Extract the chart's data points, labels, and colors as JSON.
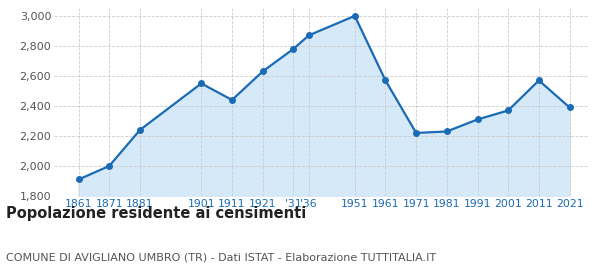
{
  "years": [
    1861,
    1871,
    1881,
    1901,
    1911,
    1921,
    1931,
    1936,
    1951,
    1961,
    1971,
    1981,
    1991,
    2001,
    2011,
    2021
  ],
  "population": [
    1910,
    2000,
    2240,
    2550,
    2440,
    2630,
    2780,
    2870,
    3000,
    2570,
    2220,
    2230,
    2310,
    2370,
    2570,
    2390
  ],
  "line_color": "#1a6bb5",
  "fill_color": "#d6e9f8",
  "marker_color": "#1a6bb5",
  "grid_color": "#cccccc",
  "bg_color": "#ffffff",
  "ylim": [
    1800,
    3050
  ],
  "yticks": [
    1800,
    2000,
    2200,
    2400,
    2600,
    2800,
    3000
  ],
  "xtick_positions": [
    1861,
    1871,
    1881,
    1901,
    1911,
    1921,
    1931,
    1936,
    1951,
    1961,
    1971,
    1981,
    1991,
    2001,
    2011,
    2021
  ],
  "xtick_labels": [
    "1861",
    "1871",
    "1881",
    "1901",
    "1911",
    "1921",
    "'31",
    "'36",
    "1951",
    "1961",
    "1971",
    "1981",
    "1991",
    "2001",
    "2011",
    "2021"
  ],
  "title": "Popolazione residente ai censimenti",
  "subtitle": "COMUNE DI AVIGLIANO UMBRO (TR) - Dati ISTAT - Elaborazione TUTTITALIA.IT",
  "title_fontsize": 10.5,
  "subtitle_fontsize": 8.0,
  "xlabel_color": "#1a6bb5",
  "ylabel_color": "#555555"
}
